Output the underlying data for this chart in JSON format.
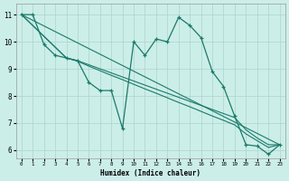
{
  "xlabel": "Humidex (Indice chaleur)",
  "bg_color": "#cceee8",
  "grid_color": "#aad4cc",
  "line_color": "#1a7a6a",
  "xlim": [
    -0.5,
    23.5
  ],
  "ylim": [
    5.7,
    11.4
  ],
  "xticks": [
    0,
    1,
    2,
    3,
    4,
    5,
    6,
    7,
    8,
    9,
    10,
    11,
    12,
    13,
    14,
    15,
    16,
    17,
    18,
    19,
    20,
    21,
    22,
    23
  ],
  "yticks": [
    6,
    7,
    8,
    9,
    10,
    11
  ],
  "line1_x": [
    0,
    1,
    2,
    3,
    4,
    5,
    6,
    7,
    8,
    9,
    10,
    11,
    12,
    13,
    14,
    15,
    16,
    17,
    18,
    19,
    20,
    21,
    22,
    23
  ],
  "line1_y": [
    11.0,
    11.0,
    9.9,
    9.5,
    9.4,
    9.3,
    8.5,
    8.2,
    8.2,
    6.8,
    10.0,
    9.5,
    10.1,
    10.0,
    10.9,
    10.6,
    10.15,
    8.9,
    8.35,
    7.25,
    6.2,
    6.15,
    5.85,
    6.2
  ],
  "line2_x": [
    0,
    23
  ],
  "line2_y": [
    11.0,
    6.2
  ],
  "line3_x": [
    0,
    4,
    5,
    6,
    7,
    8,
    9,
    10,
    11,
    12,
    13,
    14,
    15,
    16,
    17,
    18,
    19,
    20,
    21,
    22,
    23
  ],
  "line3_y": [
    11.0,
    9.4,
    9.3,
    9.15,
    9.0,
    8.85,
    8.7,
    8.55,
    8.4,
    8.25,
    8.1,
    7.95,
    7.8,
    7.65,
    7.5,
    7.35,
    7.2,
    6.75,
    6.45,
    6.2,
    6.2
  ],
  "line4_x": [
    0,
    4,
    5,
    6,
    7,
    8,
    9,
    10,
    11,
    12,
    13,
    14,
    15,
    16,
    17,
    18,
    19,
    20,
    21,
    22,
    23
  ],
  "line4_y": [
    11.0,
    9.4,
    9.28,
    9.1,
    8.93,
    8.76,
    8.6,
    8.43,
    8.26,
    8.1,
    7.93,
    7.76,
    7.6,
    7.43,
    7.26,
    7.1,
    6.93,
    6.6,
    6.35,
    6.1,
    6.2
  ]
}
